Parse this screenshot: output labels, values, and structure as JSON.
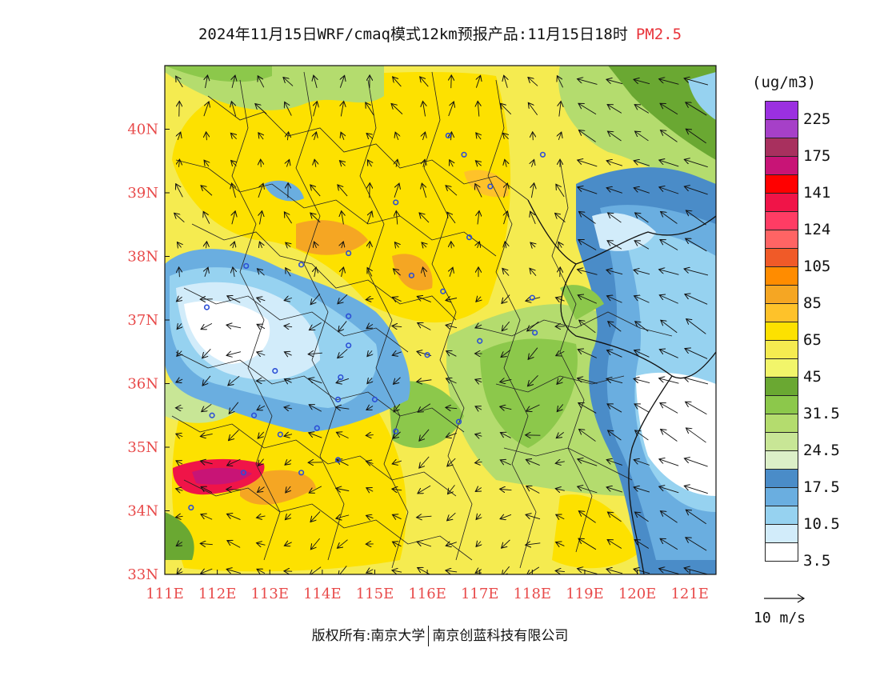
{
  "title": {
    "main": "2024年11月15日WRF/cmaq模式12km预报产品:11月15日18时",
    "pollutant": "PM2.5"
  },
  "map": {
    "lon_range": [
      111,
      121.5
    ],
    "lat_range": [
      33,
      41.0
    ],
    "lon_ticks": [
      "111E",
      "112E",
      "113E",
      "114E",
      "115E",
      "116E",
      "117E",
      "118E",
      "119E",
      "120E",
      "121E"
    ],
    "lat_ticks": [
      "33N",
      "34N",
      "35N",
      "36N",
      "37N",
      "38N",
      "39N",
      "40N"
    ],
    "tick_color": "#e84a4a"
  },
  "legend": {
    "unit": "(ug/m3)",
    "colors": [
      "#9b30e0",
      "#a640c8",
      "#a8305e",
      "#c81476",
      "#ff0000",
      "#f01448",
      "#ff3c64",
      "#ff6464",
      "#f05a28",
      "#ff8c00",
      "#f5a623",
      "#fec22a",
      "#fde100",
      "#f5eb50",
      "#f2f56a",
      "#6aa832",
      "#8cc84b",
      "#b4dc6e",
      "#c8e696",
      "#dcefc8",
      "#4a8cc8",
      "#6aaee0",
      "#96d2f0",
      "#d2ecfa",
      "#ffffff"
    ],
    "labels": [
      "225",
      "175",
      "141",
      "124",
      "105",
      "85",
      "65",
      "45",
      "31.5",
      "24.5",
      "17.5",
      "10.5",
      "3.5"
    ]
  },
  "wind_reference": {
    "label": "10 m/s"
  },
  "footer": {
    "owner_prefix": "版权所有:",
    "owner1": "南京大学",
    "owner2": "南京创蓝科技有限公司"
  },
  "monitoring_sites": [
    [
      116.4,
      39.9
    ],
    [
      116.7,
      39.6
    ],
    [
      118.2,
      39.6
    ],
    [
      117.2,
      39.1
    ],
    [
      115.4,
      38.85
    ],
    [
      116.8,
      38.3
    ],
    [
      114.5,
      38.05
    ],
    [
      113.6,
      37.87
    ],
    [
      115.7,
      37.7
    ],
    [
      116.3,
      37.45
    ],
    [
      112.55,
      37.85
    ],
    [
      111.8,
      37.2
    ],
    [
      114.5,
      37.06
    ],
    [
      118.0,
      37.35
    ],
    [
      114.5,
      36.6
    ],
    [
      117.0,
      36.67
    ],
    [
      118.05,
      36.8
    ],
    [
      116.0,
      36.45
    ],
    [
      114.35,
      36.1
    ],
    [
      113.1,
      36.2
    ],
    [
      115.0,
      35.75
    ],
    [
      114.3,
      35.75
    ],
    [
      116.6,
      35.4
    ],
    [
      115.4,
      35.25
    ],
    [
      113.9,
      35.3
    ],
    [
      113.2,
      35.2
    ],
    [
      112.7,
      35.5
    ],
    [
      111.9,
      35.5
    ],
    [
      114.3,
      34.8
    ],
    [
      113.6,
      34.6
    ],
    [
      112.5,
      34.6
    ],
    [
      111.5,
      34.05
    ]
  ]
}
